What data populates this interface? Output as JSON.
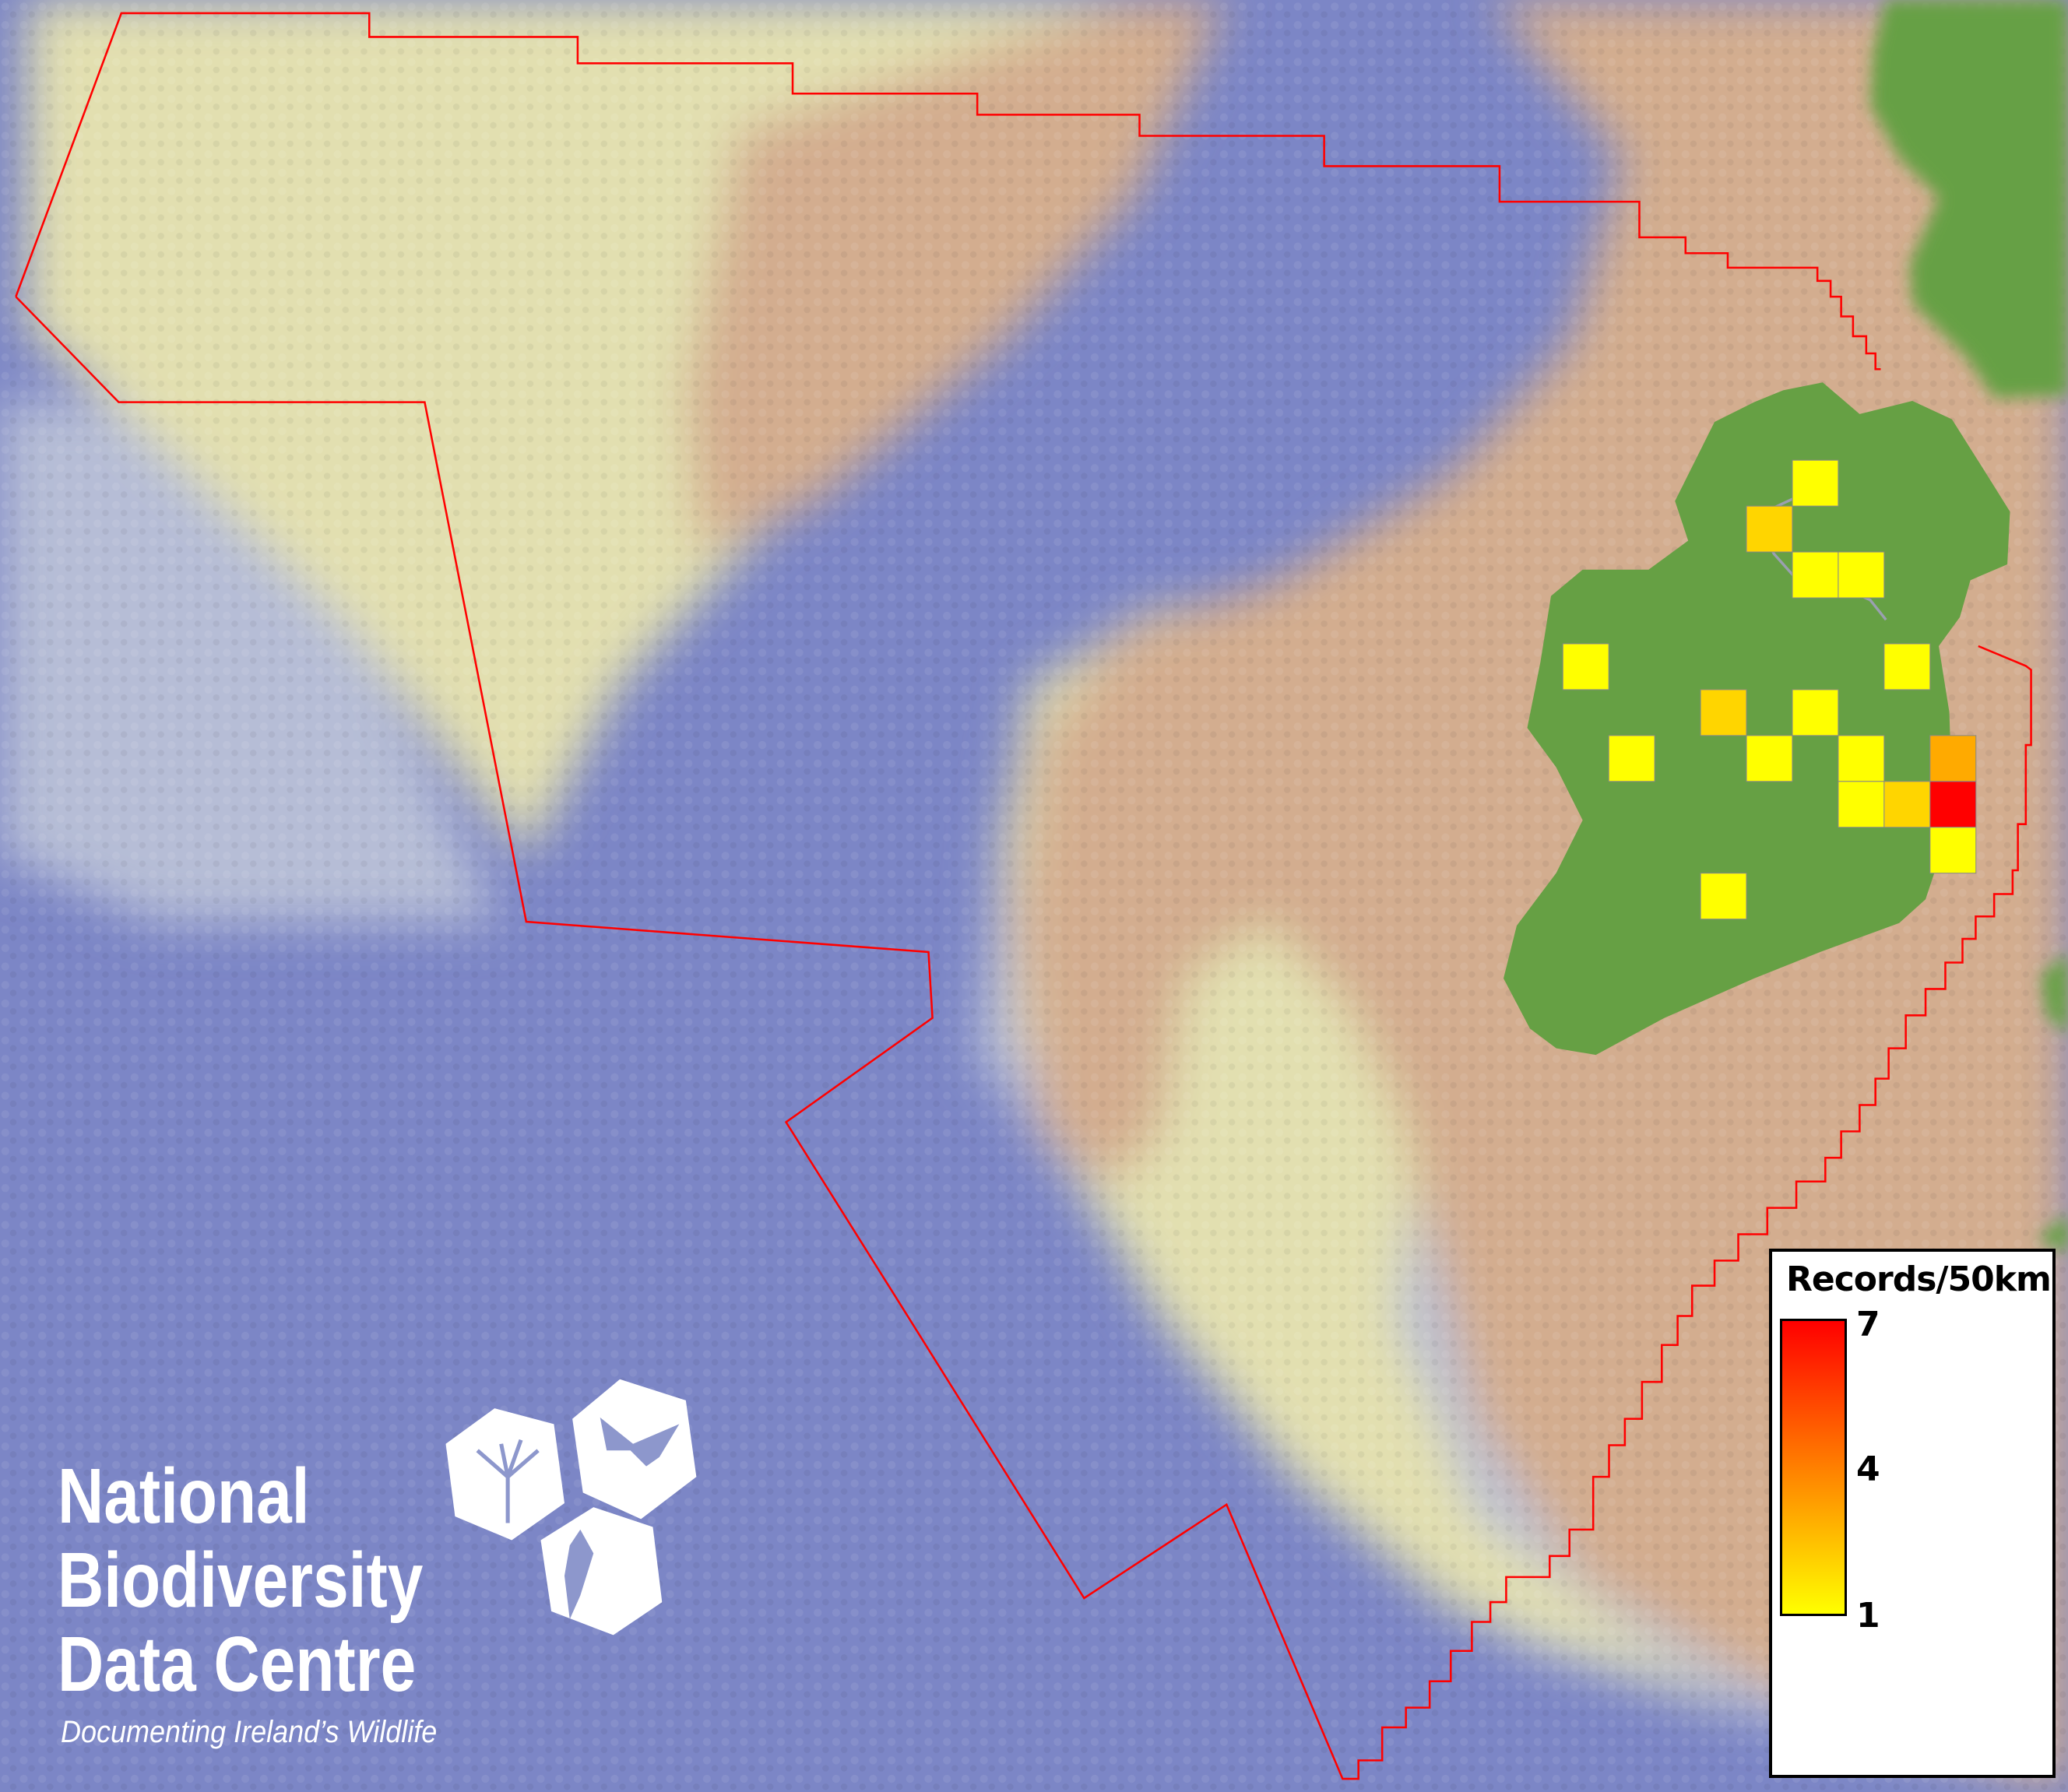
{
  "map": {
    "colors": {
      "deep_ocean": "#7c86c6",
      "slope": "#b9c0d6",
      "shelf": "#e4e1b4",
      "shallow": "#d3ad8f",
      "land": "#66a044",
      "boundary": "#ff0000",
      "cell_border": "#888888"
    },
    "grid_resolution": "50km",
    "cells": [
      {
        "grid_col": 5,
        "grid_row": 0,
        "records": 1
      },
      {
        "grid_col": 4,
        "grid_row": 1,
        "records": 2
      },
      {
        "grid_col": 5,
        "grid_row": 2,
        "records": 1
      },
      {
        "grid_col": 6,
        "grid_row": 2,
        "records": 1
      },
      {
        "grid_col": 0,
        "grid_row": 4,
        "records": 1
      },
      {
        "grid_col": 7,
        "grid_row": 4,
        "records": 1
      },
      {
        "grid_col": 3,
        "grid_row": 5,
        "records": 2
      },
      {
        "grid_col": 5,
        "grid_row": 5,
        "records": 1
      },
      {
        "grid_col": 1,
        "grid_row": 6,
        "records": 1
      },
      {
        "grid_col": 4,
        "grid_row": 6,
        "records": 1
      },
      {
        "grid_col": 6,
        "grid_row": 6,
        "records": 1
      },
      {
        "grid_col": 8,
        "grid_row": 6,
        "records": 3
      },
      {
        "grid_col": 6,
        "grid_row": 7,
        "records": 1
      },
      {
        "grid_col": 7,
        "grid_row": 7,
        "records": 2
      },
      {
        "grid_col": 8,
        "grid_row": 7,
        "records": 7
      },
      {
        "grid_col": 8,
        "grid_row": 8,
        "records": 1
      },
      {
        "grid_col": 3,
        "grid_row": 9,
        "records": 1
      }
    ]
  },
  "legend": {
    "title": "Records/50km",
    "min": 1,
    "max": 7,
    "ticks": [
      "7",
      "4",
      "1"
    ],
    "color_low": "#ffff00",
    "color_high": "#ff0000"
  },
  "logo": {
    "line1": "National",
    "line2": "Biodiversity",
    "line3": "Data Centre",
    "tagline": "Documenting Ireland’s Wildlife",
    "icons": [
      "tree-icon",
      "butterfly-icon",
      "seahorse-icon"
    ]
  }
}
